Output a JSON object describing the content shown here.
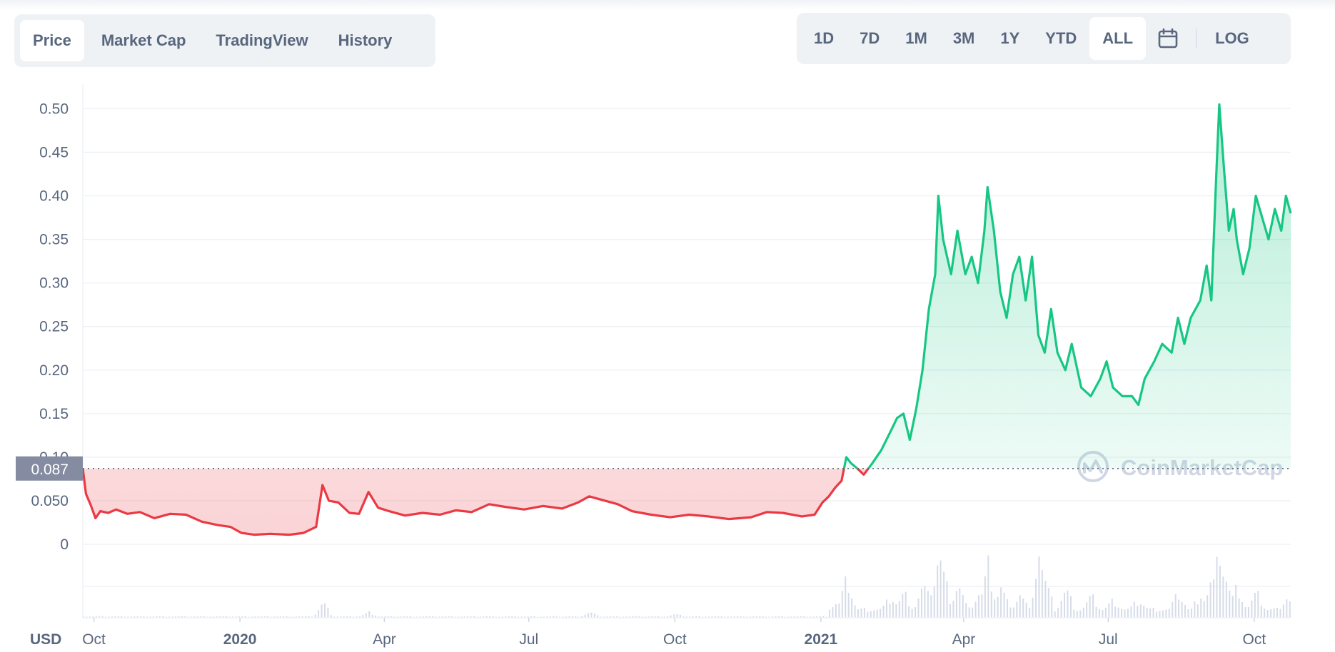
{
  "tabs": [
    {
      "label": "Price",
      "active": true
    },
    {
      "label": "Market Cap",
      "active": false
    },
    {
      "label": "TradingView",
      "active": false
    },
    {
      "label": "History",
      "active": false
    }
  ],
  "ranges": [
    {
      "label": "1D",
      "active": false
    },
    {
      "label": "7D",
      "active": false
    },
    {
      "label": "1M",
      "active": false
    },
    {
      "label": "3M",
      "active": false
    },
    {
      "label": "1Y",
      "active": false
    },
    {
      "label": "YTD",
      "active": false
    },
    {
      "label": "ALL",
      "active": true
    }
  ],
  "log_label": "LOG",
  "calendar_icon": "calendar-icon",
  "watermark": "CoinMarketCap",
  "colors": {
    "up": "#16c784",
    "down": "#ea3943",
    "text": "#58667e",
    "grid": "#eff2f5",
    "volume": "#cfd6e4"
  },
  "chart_data": {
    "type": "area",
    "currency_label": "USD",
    "title": "",
    "xlabel": "",
    "ylabel": "",
    "ylim": [
      0,
      0.52
    ],
    "yticks": [
      0,
      0.05,
      0.1,
      0.15,
      0.2,
      0.25,
      0.3,
      0.35,
      0.4,
      0.45,
      0.5
    ],
    "ytick_labels": [
      "0",
      "0.050",
      "0.10",
      "0.15",
      "0.20",
      "0.25",
      "0.30",
      "0.35",
      "0.40",
      "0.45",
      "0.50"
    ],
    "reference_price": 0.087,
    "reference_label": "0.087",
    "xlim": [
      "2019-09-24",
      "2021-10-24"
    ],
    "xticks": [
      {
        "date": "2019-10-01",
        "label": "Oct",
        "bold": false
      },
      {
        "date": "2020-01-01",
        "label": "2020",
        "bold": true
      },
      {
        "date": "2020-04-01",
        "label": "Apr",
        "bold": false
      },
      {
        "date": "2020-07-01",
        "label": "Jul",
        "bold": false
      },
      {
        "date": "2020-10-01",
        "label": "Oct",
        "bold": false
      },
      {
        "date": "2021-01-01",
        "label": "2021",
        "bold": true
      },
      {
        "date": "2021-04-01",
        "label": "Apr",
        "bold": false
      },
      {
        "date": "2021-07-01",
        "label": "Jul",
        "bold": false
      },
      {
        "date": "2021-10-01",
        "label": "Oct",
        "bold": false
      }
    ],
    "series": [
      {
        "values": [
          [
            "2019-09-24",
            0.087
          ],
          [
            "2019-09-26",
            0.058
          ],
          [
            "2019-09-29",
            0.045
          ],
          [
            "2019-10-02",
            0.03
          ],
          [
            "2019-10-05",
            0.038
          ],
          [
            "2019-10-10",
            0.036
          ],
          [
            "2019-10-15",
            0.04
          ],
          [
            "2019-10-22",
            0.035
          ],
          [
            "2019-10-30",
            0.037
          ],
          [
            "2019-11-08",
            0.03
          ],
          [
            "2019-11-18",
            0.035
          ],
          [
            "2019-11-28",
            0.034
          ],
          [
            "2019-12-08",
            0.026
          ],
          [
            "2019-12-18",
            0.022
          ],
          [
            "2019-12-26",
            0.02
          ],
          [
            "2020-01-02",
            0.013
          ],
          [
            "2020-01-10",
            0.011
          ],
          [
            "2020-01-20",
            0.012
          ],
          [
            "2020-02-01",
            0.011
          ],
          [
            "2020-02-10",
            0.013
          ],
          [
            "2020-02-18",
            0.02
          ],
          [
            "2020-02-22",
            0.068
          ],
          [
            "2020-02-26",
            0.05
          ],
          [
            "2020-03-03",
            0.048
          ],
          [
            "2020-03-10",
            0.036
          ],
          [
            "2020-03-16",
            0.035
          ],
          [
            "2020-03-22",
            0.06
          ],
          [
            "2020-03-28",
            0.042
          ],
          [
            "2020-04-04",
            0.038
          ],
          [
            "2020-04-14",
            0.033
          ],
          [
            "2020-04-25",
            0.036
          ],
          [
            "2020-05-06",
            0.034
          ],
          [
            "2020-05-16",
            0.039
          ],
          [
            "2020-05-26",
            0.037
          ],
          [
            "2020-06-06",
            0.046
          ],
          [
            "2020-06-16",
            0.043
          ],
          [
            "2020-06-28",
            0.04
          ],
          [
            "2020-07-10",
            0.044
          ],
          [
            "2020-07-22",
            0.041
          ],
          [
            "2020-08-01",
            0.048
          ],
          [
            "2020-08-08",
            0.055
          ],
          [
            "2020-08-18",
            0.05
          ],
          [
            "2020-08-26",
            0.046
          ],
          [
            "2020-09-04",
            0.038
          ],
          [
            "2020-09-16",
            0.034
          ],
          [
            "2020-09-28",
            0.031
          ],
          [
            "2020-10-10",
            0.034
          ],
          [
            "2020-10-22",
            0.032
          ],
          [
            "2020-11-04",
            0.029
          ],
          [
            "2020-11-18",
            0.031
          ],
          [
            "2020-11-28",
            0.037
          ],
          [
            "2020-12-08",
            0.036
          ],
          [
            "2020-12-20",
            0.032
          ],
          [
            "2020-12-28",
            0.034
          ],
          [
            "2021-01-02",
            0.048
          ],
          [
            "2021-01-06",
            0.055
          ],
          [
            "2021-01-10",
            0.065
          ],
          [
            "2021-01-14",
            0.073
          ],
          [
            "2021-01-17",
            0.1
          ],
          [
            "2021-01-20",
            0.093
          ],
          [
            "2021-01-24",
            0.087
          ],
          [
            "2021-01-28",
            0.08
          ],
          [
            "2021-02-02",
            0.092
          ],
          [
            "2021-02-08",
            0.108
          ],
          [
            "2021-02-14",
            0.13
          ],
          [
            "2021-02-18",
            0.145
          ],
          [
            "2021-02-22",
            0.15
          ],
          [
            "2021-02-26",
            0.12
          ],
          [
            "2021-03-02",
            0.155
          ],
          [
            "2021-03-06",
            0.2
          ],
          [
            "2021-03-10",
            0.27
          ],
          [
            "2021-03-14",
            0.31
          ],
          [
            "2021-03-16",
            0.4
          ],
          [
            "2021-03-19",
            0.35
          ],
          [
            "2021-03-24",
            0.31
          ],
          [
            "2021-03-28",
            0.36
          ],
          [
            "2021-04-02",
            0.31
          ],
          [
            "2021-04-06",
            0.33
          ],
          [
            "2021-04-10",
            0.3
          ],
          [
            "2021-04-14",
            0.36
          ],
          [
            "2021-04-16",
            0.41
          ],
          [
            "2021-04-20",
            0.36
          ],
          [
            "2021-04-24",
            0.29
          ],
          [
            "2021-04-28",
            0.26
          ],
          [
            "2021-05-02",
            0.31
          ],
          [
            "2021-05-06",
            0.33
          ],
          [
            "2021-05-10",
            0.28
          ],
          [
            "2021-05-14",
            0.33
          ],
          [
            "2021-05-18",
            0.24
          ],
          [
            "2021-05-22",
            0.22
          ],
          [
            "2021-05-26",
            0.27
          ],
          [
            "2021-05-30",
            0.22
          ],
          [
            "2021-06-04",
            0.2
          ],
          [
            "2021-06-08",
            0.23
          ],
          [
            "2021-06-14",
            0.18
          ],
          [
            "2021-06-20",
            0.17
          ],
          [
            "2021-06-26",
            0.19
          ],
          [
            "2021-06-30",
            0.21
          ],
          [
            "2021-07-04",
            0.18
          ],
          [
            "2021-07-10",
            0.17
          ],
          [
            "2021-07-16",
            0.17
          ],
          [
            "2021-07-20",
            0.16
          ],
          [
            "2021-07-24",
            0.19
          ],
          [
            "2021-07-30",
            0.21
          ],
          [
            "2021-08-04",
            0.23
          ],
          [
            "2021-08-10",
            0.22
          ],
          [
            "2021-08-14",
            0.26
          ],
          [
            "2021-08-18",
            0.23
          ],
          [
            "2021-08-22",
            0.26
          ],
          [
            "2021-08-28",
            0.28
          ],
          [
            "2021-09-01",
            0.32
          ],
          [
            "2021-09-04",
            0.28
          ],
          [
            "2021-09-07",
            0.42
          ],
          [
            "2021-09-09",
            0.505
          ],
          [
            "2021-09-12",
            0.43
          ],
          [
            "2021-09-15",
            0.36
          ],
          [
            "2021-09-18",
            0.385
          ],
          [
            "2021-09-20",
            0.35
          ],
          [
            "2021-09-24",
            0.31
          ],
          [
            "2021-09-28",
            0.34
          ],
          [
            "2021-10-02",
            0.4
          ],
          [
            "2021-10-06",
            0.375
          ],
          [
            "2021-10-10",
            0.35
          ],
          [
            "2021-10-14",
            0.385
          ],
          [
            "2021-10-18",
            0.36
          ],
          [
            "2021-10-21",
            0.4
          ],
          [
            "2021-10-24",
            0.38
          ]
        ]
      }
    ],
    "volume": [
      [
        "2019-10-01",
        0.02
      ],
      [
        "2020-02-22",
        0.22
      ],
      [
        "2020-03-22",
        0.08
      ],
      [
        "2020-08-08",
        0.08
      ],
      [
        "2020-10-01",
        0.05
      ],
      [
        "2021-01-10",
        0.2
      ],
      [
        "2021-01-17",
        0.55
      ],
      [
        "2021-02-14",
        0.3
      ],
      [
        "2021-02-22",
        0.35
      ],
      [
        "2021-03-06",
        0.45
      ],
      [
        "2021-03-12",
        0.5
      ],
      [
        "2021-03-16",
        0.95
      ],
      [
        "2021-03-19",
        0.6
      ],
      [
        "2021-03-28",
        0.5
      ],
      [
        "2021-04-10",
        0.35
      ],
      [
        "2021-04-16",
        0.75
      ],
      [
        "2021-04-24",
        0.45
      ],
      [
        "2021-05-06",
        0.35
      ],
      [
        "2021-05-18",
        1.0
      ],
      [
        "2021-05-22",
        0.5
      ],
      [
        "2021-06-04",
        0.4
      ],
      [
        "2021-06-20",
        0.3
      ],
      [
        "2021-07-04",
        0.25
      ],
      [
        "2021-07-20",
        0.25
      ],
      [
        "2021-08-14",
        0.35
      ],
      [
        "2021-08-28",
        0.35
      ],
      [
        "2021-09-04",
        0.55
      ],
      [
        "2021-09-09",
        1.0
      ],
      [
        "2021-09-12",
        0.65
      ],
      [
        "2021-09-20",
        0.45
      ],
      [
        "2021-10-02",
        0.35
      ],
      [
        "2021-10-21",
        0.3
      ]
    ]
  }
}
